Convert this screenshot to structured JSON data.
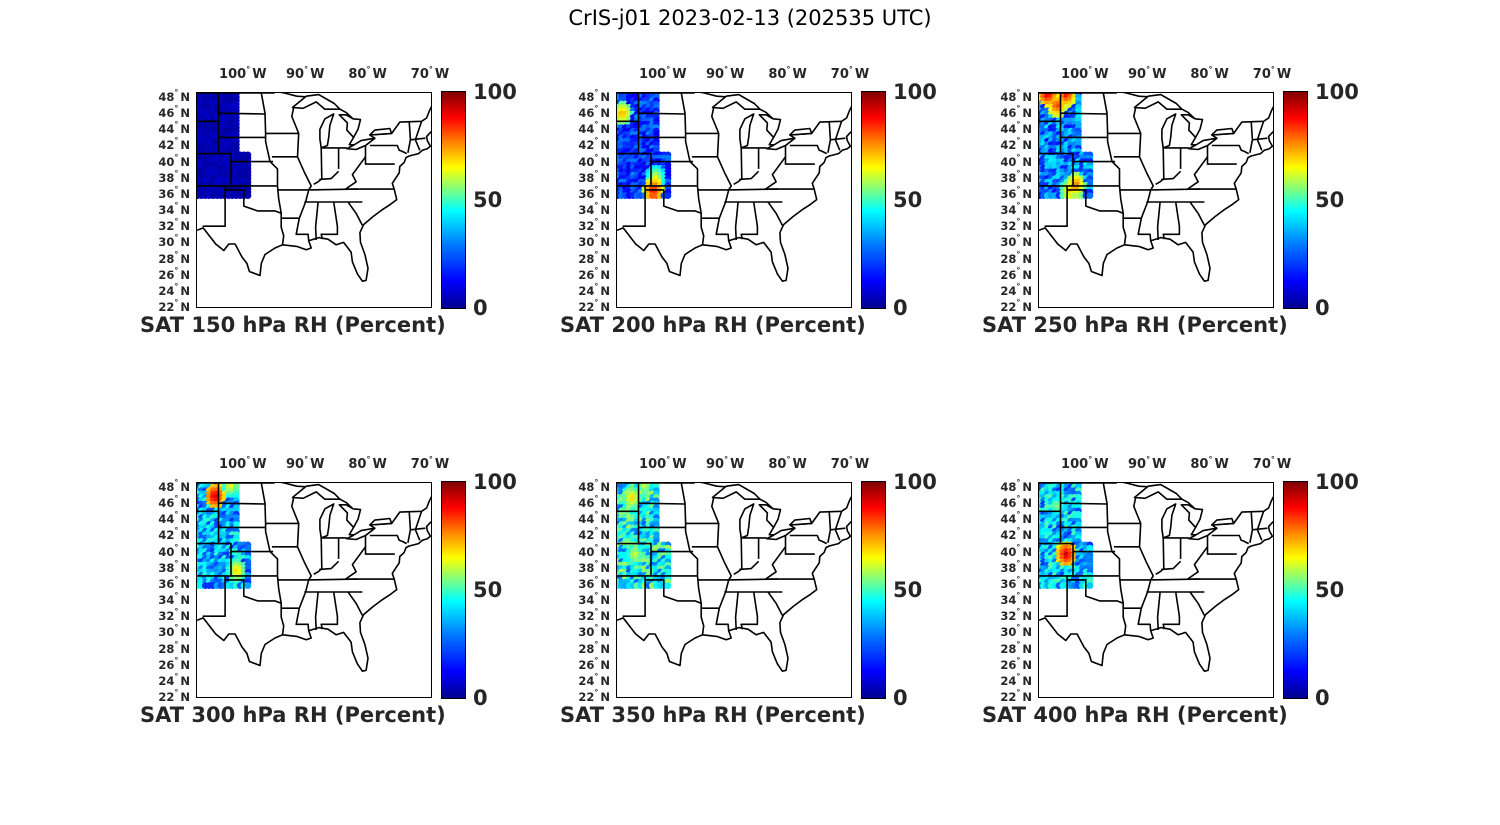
{
  "suptitle": "CrIS-j01 2023-02-13 (202535 UTC)",
  "lon_ticks": [
    "100",
    "90",
    "80",
    "70"
  ],
  "lon_suffix": "W",
  "lat_ticks": [
    "48",
    "46",
    "44",
    "42",
    "40",
    "38",
    "36",
    "34",
    "32",
    "30",
    "28",
    "26",
    "24",
    "22"
  ],
  "lat_suffix": "N",
  "degree_symbol": "°",
  "colorbar": {
    "colormap": "jet",
    "min": 0,
    "max": 100,
    "tick_labels": [
      "100",
      "50",
      "0"
    ]
  },
  "map_extent": {
    "lon_min": -107.5,
    "lon_max": -70,
    "lat_min": 22,
    "lat_max": 48.5
  },
  "panels": [
    {
      "title": "SAT 150 hPa RH (Percent)",
      "swath_rh_typical": 5,
      "hotspots": []
    },
    {
      "title": "SAT 200 hPa RH (Percent)",
      "swath_rh_typical": 18,
      "hotspots": [
        {
          "lon": -106.5,
          "lat": 45.8,
          "rh": 75
        },
        {
          "lon": -101.5,
          "lat": 36.3,
          "rh": 90
        },
        {
          "lon": -101.2,
          "lat": 37.8,
          "rh": 65
        }
      ]
    },
    {
      "title": "SAT 250 hPa RH (Percent)",
      "swath_rh_typical": 25,
      "hotspots": [
        {
          "lon": -106,
          "lat": 48.3,
          "rh": 95
        },
        {
          "lon": -103,
          "lat": 48.2,
          "rh": 90
        },
        {
          "lon": -104.5,
          "lat": 46.8,
          "rh": 85
        },
        {
          "lon": -101.5,
          "lat": 37,
          "rh": 80
        },
        {
          "lon": -102.5,
          "lat": 36.3,
          "rh": 70
        }
      ]
    },
    {
      "title": "SAT 300 hPa RH (Percent)",
      "swath_rh_typical": 30,
      "hotspots": [
        {
          "lon": -104.5,
          "lat": 46.7,
          "rh": 95
        },
        {
          "lon": -102,
          "lat": 48,
          "rh": 65
        },
        {
          "lon": -101,
          "lat": 37.5,
          "rh": 70
        }
      ]
    },
    {
      "title": "SAT 350 hPa RH (Percent)",
      "swath_rh_typical": 38,
      "hotspots": [
        {
          "lon": -105,
          "lat": 46.5,
          "rh": 70
        },
        {
          "lon": -103,
          "lat": 48,
          "rh": 60
        },
        {
          "lon": -104.5,
          "lat": 39.5,
          "rh": 62
        }
      ]
    },
    {
      "title": "SAT 400 hPa RH (Percent)",
      "swath_rh_typical": 32,
      "hotspots": [
        {
          "lon": -103,
          "lat": 39.5,
          "rh": 95
        },
        {
          "lon": -104.5,
          "lat": 45.5,
          "rh": 55
        }
      ]
    }
  ]
}
